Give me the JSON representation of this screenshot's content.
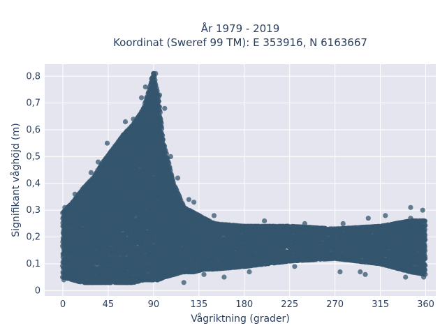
{
  "chart_data": {
    "type": "scatter",
    "title_lines": [
      "År 1979 - 2019",
      "Koordinat (Sweref 99 TM): E 353916, N 6163667"
    ],
    "xlabel": "Vågriktning (grader)",
    "ylabel": "Signifikant våghöjd (m)",
    "xlim": [
      -18,
      370
    ],
    "ylim": [
      -0.02,
      0.845
    ],
    "x_ticks": [
      0,
      45,
      90,
      135,
      180,
      225,
      270,
      315,
      360
    ],
    "x_tick_labels": [
      "0",
      "45",
      "90",
      "135",
      "180",
      "225",
      "270",
      "315",
      "360"
    ],
    "y_ticks": [
      0,
      0.1,
      0.2,
      0.3,
      0.4,
      0.5,
      0.6,
      0.7,
      0.8
    ],
    "y_tick_labels": [
      "0",
      "0,1",
      "0,2",
      "0,3",
      "0,4",
      "0,5",
      "0,6",
      "0,7",
      "0,8"
    ],
    "grid": true,
    "legend": "none",
    "marker_color": "#34566e",
    "plot_background": "#e5e5f0",
    "envelope": {
      "description": "Dense cloud of observations: upper and lower bounds of significant wave height by wave direction",
      "direction": [
        0,
        10,
        20,
        30,
        40,
        50,
        60,
        70,
        80,
        85,
        90,
        95,
        100,
        110,
        120,
        130,
        140,
        150,
        180,
        225,
        270,
        315,
        345,
        360
      ],
      "upper": [
        0.29,
        0.33,
        0.38,
        0.42,
        0.48,
        0.53,
        0.58,
        0.62,
        0.68,
        0.74,
        0.81,
        0.72,
        0.55,
        0.4,
        0.31,
        0.29,
        0.27,
        0.25,
        0.24,
        0.24,
        0.23,
        0.24,
        0.26,
        0.26
      ],
      "lower": [
        0.05,
        0.04,
        0.03,
        0.03,
        0.03,
        0.03,
        0.03,
        0.03,
        0.04,
        0.04,
        0.04,
        0.04,
        0.05,
        0.06,
        0.07,
        0.07,
        0.08,
        0.08,
        0.09,
        0.11,
        0.12,
        0.1,
        0.07,
        0.06
      ]
    },
    "outliers": [
      {
        "x": 2,
        "y": 0.31
      },
      {
        "x": 8,
        "y": 0.31
      },
      {
        "x": 12,
        "y": 0.36
      },
      {
        "x": 20,
        "y": 0.35
      },
      {
        "x": 28,
        "y": 0.44
      },
      {
        "x": 35,
        "y": 0.48
      },
      {
        "x": 44,
        "y": 0.55
      },
      {
        "x": 53,
        "y": 0.53
      },
      {
        "x": 62,
        "y": 0.63
      },
      {
        "x": 70,
        "y": 0.64
      },
      {
        "x": 78,
        "y": 0.72
      },
      {
        "x": 82,
        "y": 0.76
      },
      {
        "x": 88,
        "y": 0.79
      },
      {
        "x": 90,
        "y": 0.81
      },
      {
        "x": 92,
        "y": 0.81
      },
      {
        "x": 96,
        "y": 0.73
      },
      {
        "x": 101,
        "y": 0.68
      },
      {
        "x": 107,
        "y": 0.5
      },
      {
        "x": 114,
        "y": 0.42
      },
      {
        "x": 125,
        "y": 0.34
      },
      {
        "x": 130,
        "y": 0.33
      },
      {
        "x": 150,
        "y": 0.28
      },
      {
        "x": 200,
        "y": 0.26
      },
      {
        "x": 240,
        "y": 0.25
      },
      {
        "x": 278,
        "y": 0.25
      },
      {
        "x": 303,
        "y": 0.27
      },
      {
        "x": 320,
        "y": 0.28
      },
      {
        "x": 330,
        "y": 0.25
      },
      {
        "x": 345,
        "y": 0.27
      },
      {
        "x": 345,
        "y": 0.31
      },
      {
        "x": 357,
        "y": 0.3
      },
      {
        "x": 160,
        "y": 0.05
      },
      {
        "x": 185,
        "y": 0.07
      },
      {
        "x": 230,
        "y": 0.09
      },
      {
        "x": 275,
        "y": 0.07
      },
      {
        "x": 295,
        "y": 0.07
      },
      {
        "x": 300,
        "y": 0.06
      },
      {
        "x": 340,
        "y": 0.05
      },
      {
        "x": 358,
        "y": 0.05
      },
      {
        "x": 1,
        "y": 0.04
      },
      {
        "x": 140,
        "y": 0.06
      },
      {
        "x": 120,
        "y": 0.03
      }
    ]
  }
}
